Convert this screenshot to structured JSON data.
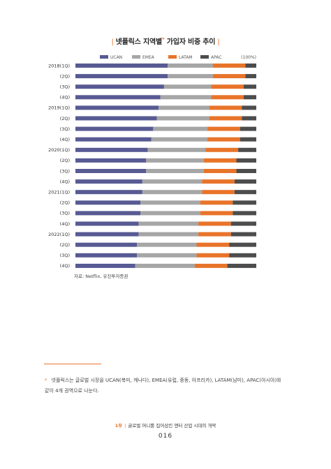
{
  "page": {
    "title": "넷플릭스 지역별",
    "title_suffix": "가입자 비중 추이",
    "title_marker": "*",
    "bar_mark": "|",
    "source": "자료: Netflix, 유진투자증권",
    "footnote_marker": "*",
    "footnote": "넷플릭스는 글로벌 시장을 UCAN(북미, 캐나다), EMEA(유럽, 중동, 아프리카), LATAM(남미), APAC(아시아)와 같이 4개 권역으로 나눈다.",
    "running_part": "1부",
    "running_sep": "|",
    "running_title": "글로벌 머니를 집어삼킨 엔터 산업 시대의 개막",
    "page_number": "016"
  },
  "chart_data": {
    "type": "bar",
    "orientation": "horizontal",
    "stacked": true,
    "unit_label": "(100%)",
    "legend_position": "top",
    "xlim": [
      0,
      100
    ],
    "categories": [
      "2018(1Q)",
      "(2Q)",
      "(3Q)",
      "(4Q)",
      "2019(1Q)",
      "(2Q)",
      "(3Q)",
      "(4Q)",
      "2020(1Q)",
      "(2Q)",
      "(3Q)",
      "(4Q)",
      "2021(1Q)",
      "(2Q)",
      "(3Q)",
      "(4Q)",
      "2022(1Q)",
      "(2Q)",
      "(3Q)",
      "(4Q)"
    ],
    "series": [
      {
        "name": "UCAN",
        "color": "#585a93",
        "values": [
          51,
          51,
          49,
          47,
          46,
          45,
          43,
          42,
          40,
          39,
          39,
          37,
          37,
          36,
          36,
          35,
          35,
          34,
          34,
          33
        ]
      },
      {
        "name": "EMEA",
        "color": "#a6a6a6",
        "values": [
          25,
          25,
          26,
          28,
          28,
          29,
          30,
          31,
          32,
          32,
          32,
          33,
          33,
          33,
          33,
          33,
          33,
          33,
          33,
          33
        ]
      },
      {
        "name": "LATAM",
        "color": "#e8742a",
        "values": [
          18,
          18,
          18,
          18,
          18,
          18,
          18,
          18,
          18,
          18,
          18,
          18,
          18,
          18,
          18,
          18,
          18,
          18,
          18,
          18
        ]
      },
      {
        "name": "APAC",
        "color": "#4d4d4d",
        "values": [
          6,
          6,
          7,
          7,
          8,
          8,
          9,
          9,
          10,
          11,
          11,
          12,
          12,
          13,
          13,
          14,
          14,
          15,
          15,
          16
        ]
      }
    ]
  }
}
